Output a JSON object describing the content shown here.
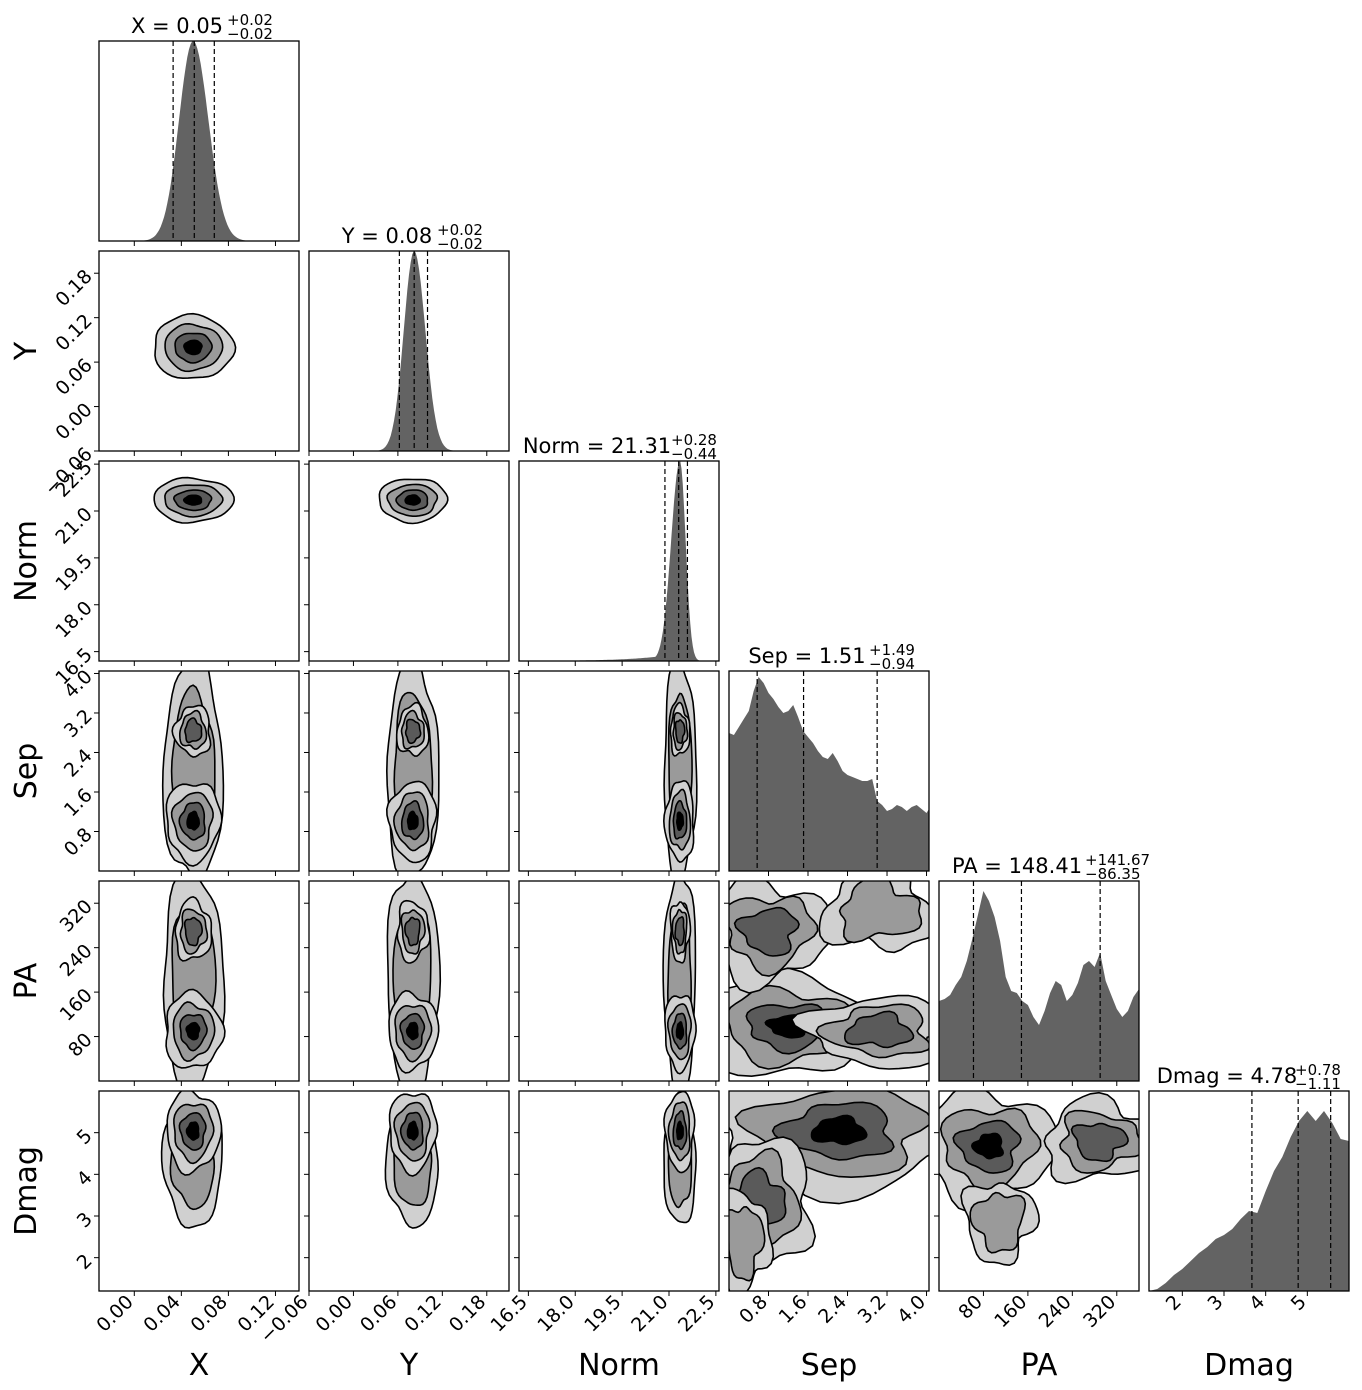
{
  "chart_data": {
    "type": "corner",
    "parameters": [
      {
        "name": "X",
        "median": "0.05",
        "plus": "+0.02",
        "minus": "−0.02",
        "range": [
          -0.03,
          0.14
        ],
        "ticks": [
          0.0,
          0.04,
          0.08,
          0.12
        ],
        "tick_labels": [
          "0.00",
          "0.04",
          "0.08",
          "0.12"
        ],
        "q16": 0.033,
        "q50": 0.051,
        "q84": 0.068,
        "mode": 0.05
      },
      {
        "name": "Y",
        "median": "0.08",
        "plus": "+0.02",
        "minus": "−0.02",
        "range": [
          -0.06,
          0.21
        ],
        "ticks": [
          -0.06,
          0.0,
          0.06,
          0.12,
          0.18
        ],
        "tick_labels": [
          "−0.06",
          "0.00",
          "0.06",
          "0.12",
          "0.18"
        ],
        "q16": 0.062,
        "q50": 0.082,
        "q84": 0.1,
        "mode": 0.08
      },
      {
        "name": "Norm",
        "median": "21.31",
        "plus": "+0.28",
        "minus": "−0.44",
        "range": [
          16.2,
          22.6
        ],
        "ticks": [
          16.5,
          18.0,
          19.5,
          21.0,
          22.5
        ],
        "tick_labels": [
          "16.5",
          "18.0",
          "19.5",
          "21.0",
          "22.5"
        ],
        "q16": 20.87,
        "q50": 21.31,
        "q84": 21.59,
        "mode": 21.35
      },
      {
        "name": "Sep",
        "median": "1.51",
        "plus": "+1.49",
        "minus": "−0.94",
        "range": [
          0.0,
          4.05
        ],
        "ticks": [
          0.8,
          1.6,
          2.4,
          3.2,
          4.0
        ],
        "tick_labels": [
          "0.8",
          "1.6",
          "2.4",
          "3.2",
          "4.0"
        ],
        "q16": 0.57,
        "q50": 1.51,
        "q84": 3.0
      },
      {
        "name": "PA",
        "median": "148.41",
        "plus": "+141.67",
        "minus": "−86.35",
        "range": [
          0,
          360
        ],
        "ticks": [
          80,
          160,
          240,
          320
        ],
        "tick_labels": [
          "80",
          "160",
          "240",
          "320"
        ],
        "q16": 62.06,
        "q50": 148.41,
        "q84": 290.08
      },
      {
        "name": "Dmag",
        "median": "4.78",
        "plus": "+0.78",
        "minus": "−1.11",
        "range": [
          1.2,
          6.0
        ],
        "ticks": [
          2,
          3,
          4,
          5
        ],
        "tick_labels": [
          "2",
          "3",
          "4",
          "5"
        ],
        "q16": 3.67,
        "q50": 4.78,
        "q84": 5.56
      }
    ],
    "marginals": {
      "Sep": {
        "x": [
          0.0,
          0.1,
          0.2,
          0.3,
          0.4,
          0.5,
          0.6,
          0.7,
          0.8,
          0.9,
          1.0,
          1.1,
          1.2,
          1.3,
          1.4,
          1.5,
          1.6,
          1.7,
          1.8,
          1.9,
          2.0,
          2.1,
          2.2,
          2.3,
          2.4,
          2.5,
          2.6,
          2.7,
          2.8,
          2.9,
          3.0,
          3.1,
          3.2,
          3.3,
          3.4,
          3.5,
          3.6,
          3.7,
          3.8,
          3.9,
          4.0,
          4.05
        ],
        "y": [
          0.69,
          0.68,
          0.72,
          0.76,
          0.8,
          0.9,
          0.97,
          0.94,
          0.89,
          0.86,
          0.82,
          0.79,
          0.8,
          0.83,
          0.77,
          0.7,
          0.67,
          0.64,
          0.6,
          0.57,
          0.56,
          0.59,
          0.55,
          0.5,
          0.48,
          0.47,
          0.46,
          0.45,
          0.45,
          0.46,
          0.35,
          0.33,
          0.3,
          0.31,
          0.33,
          0.32,
          0.3,
          0.32,
          0.33,
          0.31,
          0.29,
          0.31
        ]
      },
      "PA": {
        "x": [
          0,
          10,
          20,
          30,
          40,
          50,
          60,
          70,
          80,
          90,
          100,
          110,
          120,
          130,
          140,
          150,
          160,
          170,
          180,
          190,
          200,
          210,
          220,
          230,
          240,
          250,
          260,
          270,
          280,
          290,
          300,
          310,
          320,
          330,
          340,
          350,
          360
        ],
        "y": [
          0.4,
          0.41,
          0.43,
          0.48,
          0.52,
          0.6,
          0.71,
          0.83,
          0.95,
          0.9,
          0.82,
          0.7,
          0.52,
          0.45,
          0.44,
          0.4,
          0.38,
          0.32,
          0.28,
          0.35,
          0.44,
          0.5,
          0.48,
          0.4,
          0.43,
          0.49,
          0.58,
          0.6,
          0.57,
          0.64,
          0.5,
          0.43,
          0.36,
          0.32,
          0.35,
          0.42,
          0.46
        ]
      },
      "Dmag": {
        "x": [
          1.2,
          1.4,
          1.6,
          1.8,
          2.0,
          2.2,
          2.4,
          2.6,
          2.8,
          3.0,
          3.2,
          3.4,
          3.6,
          3.8,
          4.0,
          4.2,
          4.4,
          4.6,
          4.8,
          5.0,
          5.2,
          5.4,
          5.6,
          5.8,
          6.0
        ],
        "y": [
          0.0,
          0.01,
          0.04,
          0.08,
          0.11,
          0.15,
          0.19,
          0.22,
          0.26,
          0.28,
          0.31,
          0.36,
          0.4,
          0.39,
          0.5,
          0.6,
          0.67,
          0.77,
          0.85,
          0.9,
          0.85,
          0.9,
          0.84,
          0.76,
          0.75
        ]
      }
    },
    "xlabels": [
      "X",
      "Y",
      "Norm",
      "Sep",
      "PA",
      "Dmag"
    ],
    "ylabels": [
      "Y",
      "Norm",
      "Sep",
      "PA",
      "Dmag"
    ]
  }
}
